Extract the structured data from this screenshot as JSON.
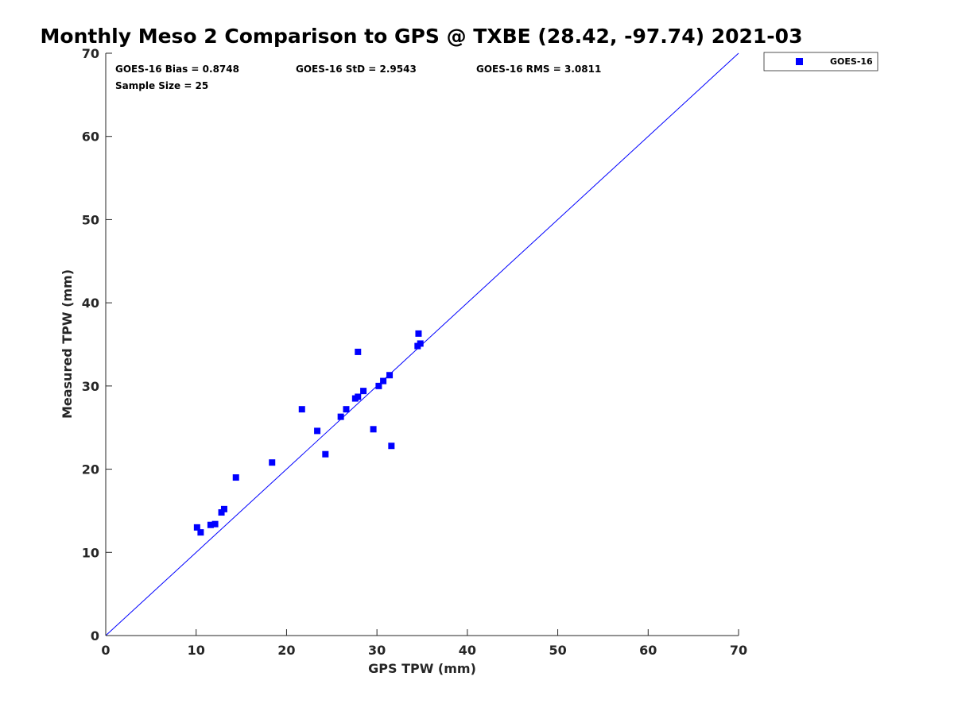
{
  "chart_data": {
    "type": "scatter",
    "title": "Monthly Meso 2 Comparison to GPS @ TXBE (28.42, -97.74) 2021-03",
    "xlabel": "GPS TPW (mm)",
    "ylabel": "Measured TPW (mm)",
    "xlim": [
      0,
      70
    ],
    "ylim": [
      0,
      70
    ],
    "xticks": [
      0,
      10,
      20,
      30,
      40,
      50,
      60,
      70
    ],
    "yticks": [
      0,
      10,
      20,
      30,
      40,
      50,
      60,
      70
    ],
    "grid": false,
    "legend_position": "top-right outside plot",
    "reference_line": {
      "type": "one-to-one",
      "from": [
        0,
        0
      ],
      "to": [
        70,
        70
      ],
      "color": "#0000ff"
    },
    "stats": {
      "bias": "GOES-16 Bias = 0.8748",
      "std": "GOES-16 StD = 2.9543",
      "rms": "GOES-16 RMS = 3.0811",
      "sample_size": "Sample Size = 25"
    },
    "series": [
      {
        "name": "GOES-16",
        "color": "#0000ff",
        "marker": "square",
        "points": [
          {
            "x": 10.1,
            "y": 13.0
          },
          {
            "x": 10.5,
            "y": 12.4
          },
          {
            "x": 11.6,
            "y": 13.3
          },
          {
            "x": 12.1,
            "y": 13.4
          },
          {
            "x": 12.8,
            "y": 14.8
          },
          {
            "x": 13.1,
            "y": 15.2
          },
          {
            "x": 14.4,
            "y": 19.0
          },
          {
            "x": 18.4,
            "y": 20.8
          },
          {
            "x": 21.7,
            "y": 27.2
          },
          {
            "x": 23.4,
            "y": 24.6
          },
          {
            "x": 24.3,
            "y": 21.8
          },
          {
            "x": 26.0,
            "y": 26.3
          },
          {
            "x": 26.6,
            "y": 27.2
          },
          {
            "x": 27.6,
            "y": 28.5
          },
          {
            "x": 27.9,
            "y": 28.7
          },
          {
            "x": 27.9,
            "y": 34.1
          },
          {
            "x": 28.5,
            "y": 29.4
          },
          {
            "x": 29.6,
            "y": 24.8
          },
          {
            "x": 30.2,
            "y": 30.0
          },
          {
            "x": 30.7,
            "y": 30.6
          },
          {
            "x": 31.4,
            "y": 31.3
          },
          {
            "x": 31.6,
            "y": 22.8
          },
          {
            "x": 34.5,
            "y": 34.8
          },
          {
            "x": 34.6,
            "y": 36.3
          },
          {
            "x": 34.8,
            "y": 35.1
          }
        ]
      }
    ]
  }
}
